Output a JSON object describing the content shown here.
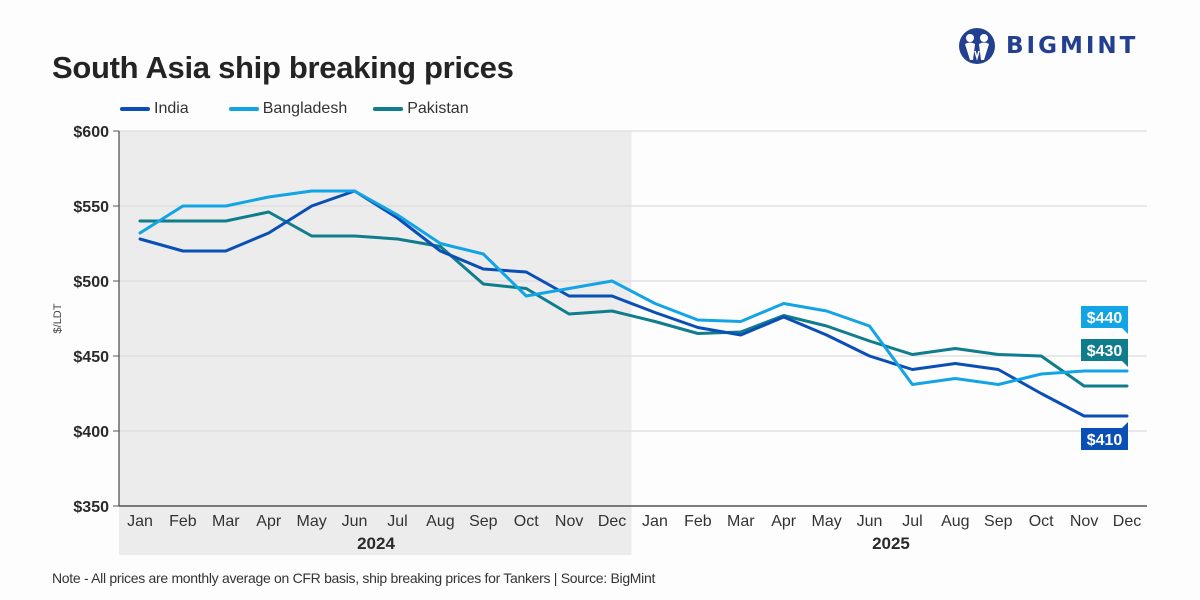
{
  "header": {
    "title": "South Asia ship breaking prices",
    "logo_text": "BIGMINT",
    "logo_icon": "bigmint-people-icon",
    "logo_color": "#233f8f"
  },
  "footnote": "Note - All prices are monthly average on CFR basis, ship breaking prices for Tankers  |  Source: BigMint",
  "chart_data": {
    "type": "line",
    "title": "South Asia ship breaking prices",
    "xlabel": "",
    "ylabel": "$/LDT",
    "ylim": [
      350,
      600
    ],
    "yticks": [
      350,
      400,
      450,
      500,
      550,
      600
    ],
    "ytick_labels": [
      "$350",
      "$400",
      "$450",
      "$500",
      "$550",
      "$600"
    ],
    "grid": true,
    "legend_position": "top-left",
    "x": [
      "Jan",
      "Feb",
      "Mar",
      "Apr",
      "May",
      "Jun",
      "Jul",
      "Aug",
      "Sep",
      "Oct",
      "Nov",
      "Dec",
      "Jan",
      "Feb",
      "Mar",
      "Apr",
      "May",
      "Jun",
      "Jul",
      "Aug",
      "Sep",
      "Oct",
      "Nov",
      "Dec"
    ],
    "year_groups": [
      {
        "label": "2024",
        "start": 0,
        "end": 11,
        "shaded": true
      },
      {
        "label": "2025",
        "start": 12,
        "end": 23,
        "shaded": false
      }
    ],
    "shade_color": "#ebeceb",
    "series": [
      {
        "name": "India",
        "color": "#0a4fb5",
        "values": [
          528,
          520,
          520,
          532,
          550,
          560,
          542,
          520,
          508,
          506,
          490,
          490,
          479,
          469,
          464,
          476,
          464,
          450,
          441,
          445,
          441,
          425,
          410,
          410
        ],
        "end_label": "$410"
      },
      {
        "name": "Bangladesh",
        "color": "#12a4e4",
        "values": [
          532,
          550,
          550,
          556,
          560,
          560,
          544,
          525,
          518,
          490,
          495,
          500,
          485,
          474,
          473,
          485,
          480,
          470,
          431,
          435,
          431,
          438,
          440,
          440
        ],
        "end_label": "$440"
      },
      {
        "name": "Pakistan",
        "color": "#0f7d8c",
        "values": [
          540,
          540,
          540,
          546,
          530,
          530,
          528,
          523,
          498,
          495,
          478,
          480,
          473,
          465,
          466,
          477,
          470,
          460,
          451,
          455,
          451,
          450,
          430,
          430
        ],
        "end_label": "$430"
      }
    ]
  }
}
